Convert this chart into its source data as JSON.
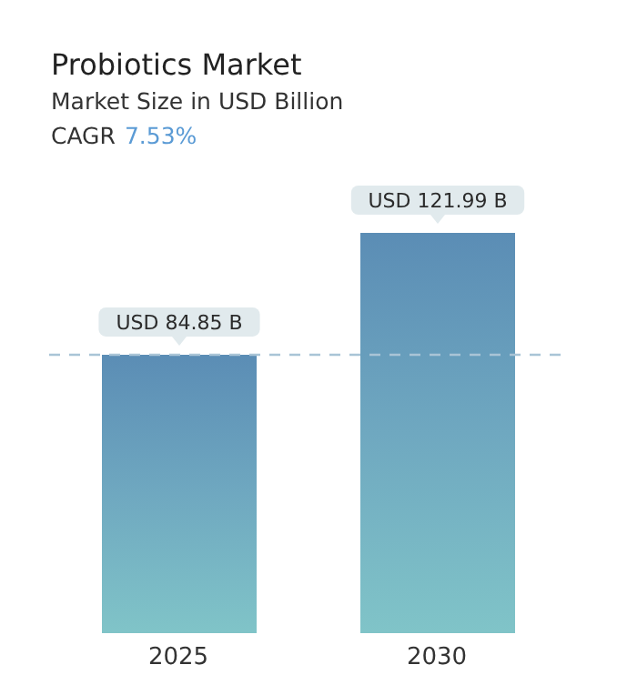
{
  "chart_data": {
    "type": "bar",
    "title": "Probiotics Market",
    "subtitle": "Market Size in USD Billion",
    "annotations": [
      "CAGR",
      "7.53%"
    ],
    "categories": [
      "2025",
      "2030"
    ],
    "series": [
      {
        "color": "#6fa8c0",
        "values": [
          84.85,
          121.99
        ],
        "value_labels": [
          "USD 84.85 B",
          "USD 121.99 B"
        ]
      }
    ],
    "ref_lines": [
      {
        "axis": "y",
        "value": 84.85,
        "color": "#a9c4d6",
        "line_style": "dashed"
      }
    ],
    "grid": false,
    "legend": false,
    "tick_labels": "x"
  }
}
